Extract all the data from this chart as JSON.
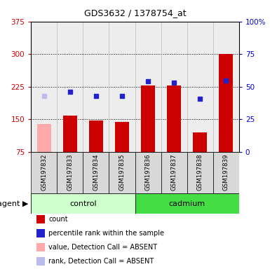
{
  "title": "GDS3632 / 1378754_at",
  "samples": [
    "GSM197832",
    "GSM197833",
    "GSM197834",
    "GSM197835",
    "GSM197836",
    "GSM197837",
    "GSM197838",
    "GSM197839"
  ],
  "bar_values": [
    140,
    158,
    147,
    145,
    228,
    228,
    120,
    300
  ],
  "bar_colors": [
    "#ffaaaa",
    "#cc0000",
    "#cc0000",
    "#cc0000",
    "#cc0000",
    "#cc0000",
    "#cc0000",
    "#cc0000"
  ],
  "rank_values": [
    43,
    46,
    43,
    43,
    54,
    53,
    41,
    55
  ],
  "rank_colors": [
    "#bbbbee",
    "#2222cc",
    "#2222cc",
    "#2222cc",
    "#2222cc",
    "#2222cc",
    "#2222cc",
    "#2222cc"
  ],
  "groups": [
    {
      "label": "control",
      "start": 0,
      "end": 4,
      "color": "#ccffcc"
    },
    {
      "label": "cadmium",
      "start": 4,
      "end": 8,
      "color": "#44dd44"
    }
  ],
  "group_label": "agent",
  "ylim_left": [
    75,
    375
  ],
  "ylim_right": [
    0,
    100
  ],
  "yticks_left": [
    75,
    150,
    225,
    300,
    375
  ],
  "yticks_right": [
    0,
    25,
    50,
    75,
    100
  ],
  "ylabel_left_color": "#cc0000",
  "ylabel_right_color": "#0000cc",
  "grid_dotted_values": [
    150,
    225,
    300
  ],
  "legend": [
    {
      "color": "#cc0000",
      "label": "count"
    },
    {
      "color": "#2222cc",
      "label": "percentile rank within the sample"
    },
    {
      "color": "#ffaaaa",
      "label": "value, Detection Call = ABSENT"
    },
    {
      "color": "#bbbbee",
      "label": "rank, Detection Call = ABSENT"
    }
  ]
}
